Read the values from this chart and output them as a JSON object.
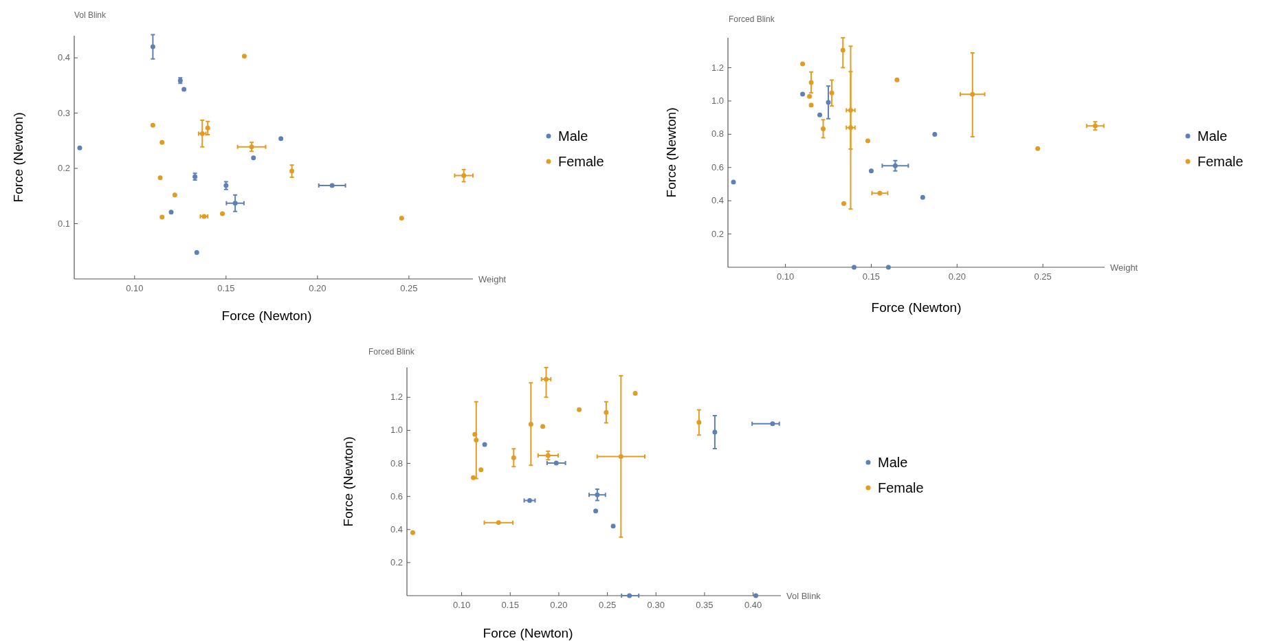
{
  "chart_data": [
    {
      "type": "scatter",
      "xlabel": "Weight",
      "ylabel": "Vol Blink",
      "annotations": [
        "Force (Newton)",
        "Force (Newton)"
      ],
      "xlim": [
        0.067,
        0.285
      ],
      "ylim": [
        0,
        0.44
      ],
      "xticks": [
        {
          "value": 0.1,
          "label": "0.10"
        },
        0.15,
        {
          "value": 0.2,
          "label": "0.20"
        },
        0.25
      ],
      "yticks": [
        0.1,
        0.2,
        0.3,
        0.4
      ],
      "grid": false,
      "legend": "right",
      "marker": "circle",
      "series": [
        {
          "name": "Male",
          "color": "#5e81b5",
          "x": [
            0.11,
            0.125,
            0.127,
            0.07,
            0.133,
            0.15,
            0.155,
            0.12,
            0.134,
            0.165,
            0.18,
            0.208
          ],
          "values": [
            0.42,
            0.359,
            0.343,
            0.237,
            0.185,
            0.169,
            0.137,
            0.121,
            0.048,
            0.219,
            0.254,
            0.169
          ],
          "errors": [
            0.022,
            0.005,
            null,
            null,
            0.006,
            0.007,
            0.015,
            null,
            null,
            null,
            null,
            null
          ],
          "xerrors": [
            null,
            null,
            null,
            null,
            null,
            null,
            0.0048,
            null,
            null,
            null,
            null,
            0.0073
          ]
        },
        {
          "name": "Female",
          "color": "#e19c24",
          "x": [
            0.11,
            0.115,
            0.114,
            0.122,
            0.115,
            0.137,
            0.14,
            0.138,
            0.148,
            0.16,
            0.164,
            0.186,
            0.246,
            0.28
          ],
          "values": [
            0.278,
            0.247,
            0.183,
            0.152,
            0.112,
            0.263,
            0.273,
            0.113,
            0.118,
            0.403,
            0.239,
            0.195,
            0.11,
            0.187
          ],
          "errors": [
            null,
            null,
            null,
            null,
            null,
            0.024,
            0.012,
            null,
            null,
            null,
            0.008,
            0.011,
            null,
            0.011
          ],
          "xerrors": [
            null,
            null,
            null,
            null,
            null,
            0.002,
            null,
            0.002,
            null,
            null,
            0.0077,
            null,
            null,
            0.005
          ]
        }
      ]
    },
    {
      "type": "scatter",
      "xlabel": "Weight",
      "ylabel": "Forced Blink",
      "annotations": [
        "Force (Newton)",
        "Force (Newton)"
      ],
      "xlim": [
        0.0665,
        0.286
      ],
      "ylim": [
        0,
        1.38
      ],
      "xticks": [
        {
          "value": 0.1,
          "label": "0.10"
        },
        0.15,
        {
          "value": 0.2,
          "label": "0.20"
        },
        0.25
      ],
      "yticks": [
        0.2,
        0.4,
        0.6,
        0.8,
        {
          "value": 1,
          "label": "1.0"
        },
        1.2
      ],
      "grid": false,
      "legend": "right",
      "marker": "circle",
      "series": [
        {
          "name": "Male",
          "color": "#5e81b5",
          "x": [
            0.0697,
            0.11,
            0.12,
            0.125,
            0.15,
            0.164,
            0.18,
            0.187,
            0.14,
            0.16
          ],
          "values": [
            0.512,
            1.041,
            0.916,
            0.992,
            0.579,
            0.61,
            0.42,
            0.8,
            0,
            0
          ],
          "errors": [
            null,
            null,
            null,
            0.098,
            null,
            0.031,
            null,
            null,
            null,
            null
          ],
          "xerrors": [
            null,
            null,
            null,
            null,
            null,
            0.0076,
            null,
            null,
            null,
            null
          ]
        },
        {
          "name": "Female",
          "color": "#e19c24",
          "x": [
            0.11,
            0.115,
            0.114,
            0.115,
            0.122,
            0.127,
            0.1335,
            0.138,
            0.138,
            0.134,
            0.148,
            0.155,
            0.165,
            0.209,
            0.247,
            0.2805
          ],
          "values": [
            1.223,
            1.111,
            1.028,
            0.975,
            0.833,
            1.048,
            1.306,
            0.944,
            0.84,
            0.383,
            0.76,
            0.445,
            1.127,
            1.04,
            0.714,
            0.85
          ],
          "errors": [
            null,
            0.063,
            null,
            null,
            0.054,
            0.078,
            [
              1.2,
              1.38
            ],
            [
              0.711,
              1.177
            ],
            [
              0.35,
              1.329
            ],
            null,
            null,
            null,
            null,
            [
              0.785,
              1.289
            ],
            null,
            0.025
          ],
          "xerrors": [
            null,
            null,
            null,
            null,
            null,
            null,
            null,
            0.0025,
            0.0025,
            null,
            null,
            0.0046,
            null,
            0.0071,
            null,
            0.005
          ]
        }
      ]
    },
    {
      "type": "scatter",
      "xlabel": "Vol Blink",
      "ylabel": "Forced Blink",
      "annotations": [
        "Force (Newton)",
        "Force (Newton)"
      ],
      "xlim": [
        0.0437,
        0.4286
      ],
      "ylim": [
        0,
        1.38
      ],
      "xticks": [
        {
          "value": 0.1,
          "label": "0.10"
        },
        0.15,
        {
          "value": 0.2,
          "label": "0.20"
        },
        0.25,
        {
          "value": 0.3,
          "label": "0.30"
        },
        0.35,
        {
          "value": 0.4,
          "label": "0.40"
        }
      ],
      "yticks": [
        0.2,
        0.4,
        0.6,
        0.8,
        {
          "value": 1,
          "label": "1.0"
        },
        1.2
      ],
      "grid": false,
      "legend": "right",
      "marker": "circle",
      "series": [
        {
          "name": "Male",
          "color": "#5e81b5",
          "x": [
            0.1237,
            0.1974,
            0.17,
            0.2396,
            0.238,
            0.256,
            0.3606,
            0.42,
            0.2727,
            0.4028
          ],
          "values": [
            0.914,
            0.802,
            0.576,
            0.61,
            0.512,
            0.421,
            0.989,
            1.04,
            0,
            0
          ],
          "errors": [
            null,
            null,
            null,
            0.034,
            null,
            null,
            0.1,
            null,
            null,
            null
          ],
          "xerrors": [
            null,
            0.0095,
            0.0056,
            0.0084,
            null,
            null,
            null,
            [
              0.399,
              0.427
            ],
            [
              0.2646,
              0.2823
            ],
            null
          ]
        },
        {
          "name": "Female",
          "color": "#e19c24",
          "x": [
            0.0497,
            0.1136,
            0.115,
            0.112,
            0.1199,
            0.138,
            0.1536,
            0.1713,
            0.1835,
            0.187,
            0.189,
            0.221,
            0.2488,
            0.264,
            0.2787,
            0.3443
          ],
          "values": [
            0.381,
            0.976,
            0.941,
            0.714,
            0.762,
            0.442,
            0.834,
            1.037,
            1.024,
            1.309,
            0.848,
            1.125,
            1.109,
            0.842,
            1.224,
            1.048
          ],
          "errors": [
            null,
            null,
            0.232,
            null,
            null,
            null,
            0.054,
            [
              0.789,
              1.288
            ],
            null,
            [
              1.2,
              1.38
            ],
            0.026,
            null,
            0.064,
            [
              0.354,
              1.33
            ],
            null,
            0.076
          ],
          "xerrors": [
            null,
            null,
            null,
            null,
            null,
            0.0147,
            null,
            null,
            null,
            0.0048,
            0.0103,
            null,
            null,
            0.0245,
            null,
            null
          ]
        }
      ]
    }
  ]
}
